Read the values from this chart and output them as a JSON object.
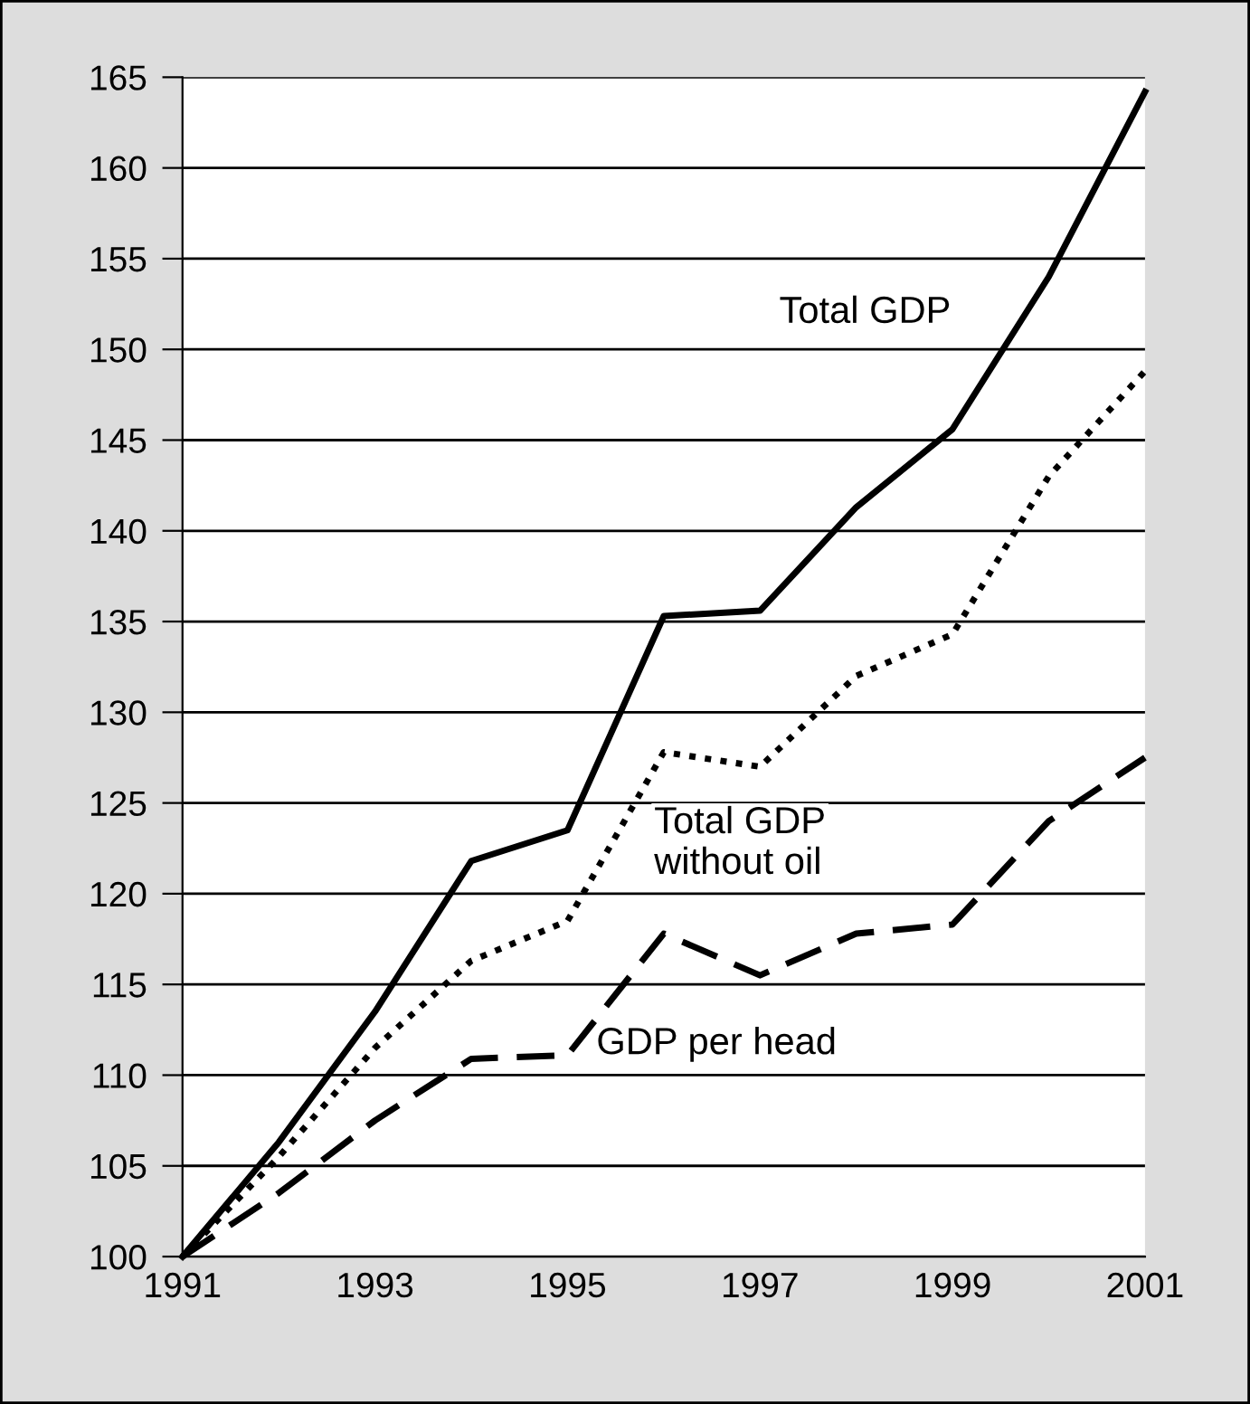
{
  "chart_data": {
    "type": "line",
    "x": [
      1991,
      1992,
      1993,
      1994,
      1995,
      1996,
      1997,
      1998,
      1999,
      2000,
      2001
    ],
    "series": [
      {
        "name": "Total GDP",
        "color": "#000000",
        "line_style": "solid",
        "values": [
          100,
          106.3,
          113.5,
          121.8,
          123.5,
          135.3,
          135.6,
          141.3,
          145.6,
          154.0,
          164.2
        ]
      },
      {
        "name": "Total GDP\nwithout oil",
        "color": "#000000",
        "line_style": "dotted",
        "values": [
          100,
          105.5,
          111.5,
          116.3,
          118.5,
          127.8,
          127.0,
          132.0,
          134.3,
          143.0,
          148.8
        ]
      },
      {
        "name": "GDP per head",
        "color": "#000000",
        "line_style": "dashed",
        "values": [
          100,
          103.5,
          107.5,
          110.9,
          111.1,
          117.8,
          115.5,
          117.8,
          118.3,
          124.0,
          127.5
        ]
      }
    ],
    "xlim": [
      1991,
      2001
    ],
    "xticks": [
      1991,
      1993,
      1995,
      1997,
      1999,
      2001
    ],
    "ylim": [
      100,
      165
    ],
    "yticks": [
      100,
      105,
      110,
      115,
      120,
      125,
      130,
      135,
      140,
      145,
      150,
      155,
      160,
      165
    ],
    "grid": "y",
    "marker": "none",
    "legend": false
  }
}
